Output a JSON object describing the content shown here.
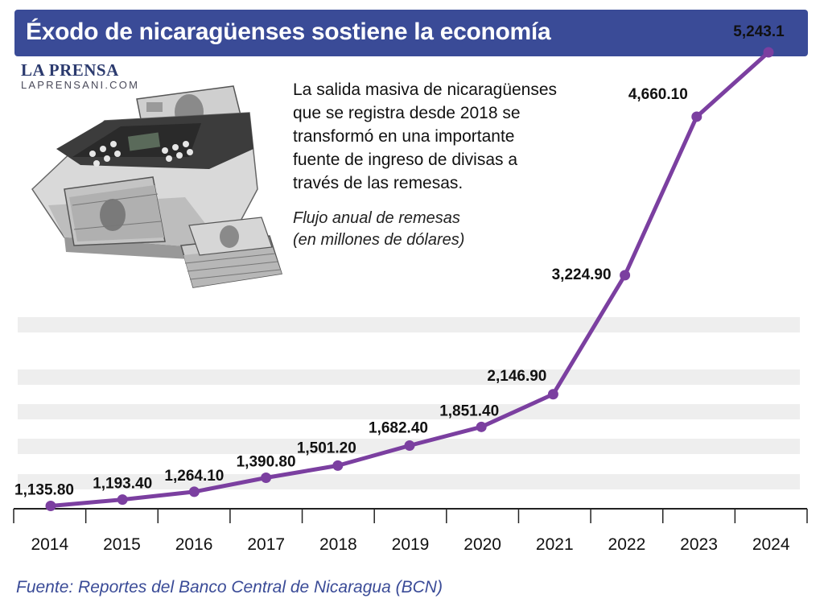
{
  "header": {
    "title": "Éxodo de nicaragüenses sostiene la economía"
  },
  "logo": {
    "name": "LA PRENSA",
    "site": "LAPRENSANI.COM"
  },
  "description": {
    "lines": [
      "La salida masiva de nicaragüenses",
      "que se registra desde 2018 se",
      "transformó en una importante",
      "fuente de ingreso de divisas a",
      "través de las remesas."
    ]
  },
  "subtitle": {
    "lines": [
      "Flujo anual de remesas",
      "(en millones de dólares)"
    ]
  },
  "colors": {
    "header_bg": "#3a4b97",
    "line": "#7b3fa0",
    "band": "#eeeeee",
    "source_text": "#3a4b97"
  },
  "chart_data": {
    "type": "line",
    "categories": [
      "2014",
      "2015",
      "2016",
      "2017",
      "2018",
      "2019",
      "2020",
      "2021",
      "2022",
      "2023",
      "2024"
    ],
    "values": [
      1135.8,
      1193.4,
      1264.1,
      1390.8,
      1501.2,
      1682.4,
      1851.4,
      2146.9,
      3224.9,
      4660.1,
      5243.1
    ],
    "labels": [
      "1,135.80",
      "1,193.40",
      "1,264.10",
      "1,390.80",
      "1,501.20",
      "1,682.40",
      "1,851.40",
      "2,146.90",
      "3,224.90",
      "4,660.10",
      "5,243.1"
    ],
    "grid": "horizontal bands",
    "legend": "none"
  },
  "source": "Fuente: Reportes del Banco Central de Nicaragua (BCN)"
}
